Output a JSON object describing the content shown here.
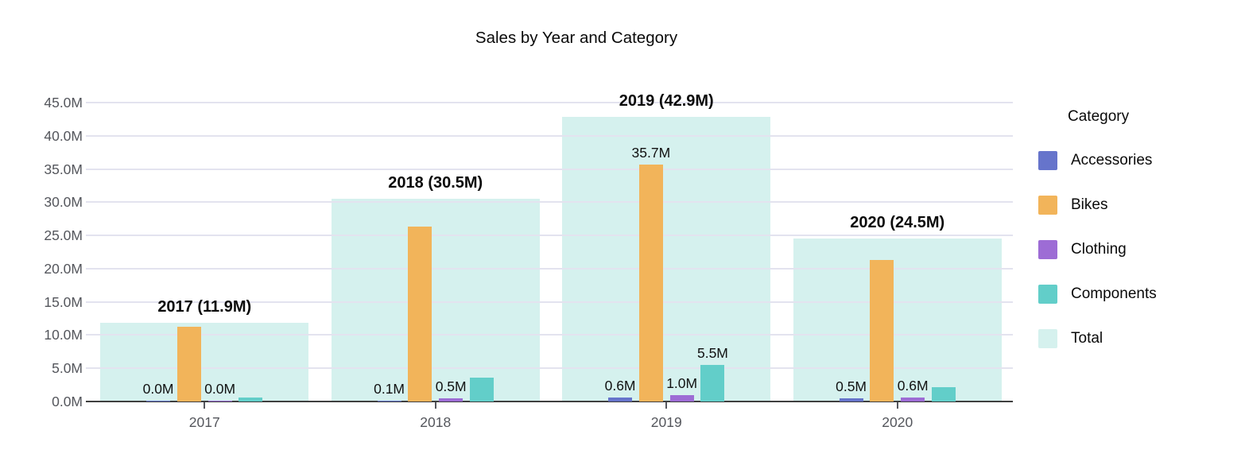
{
  "title": "Sales by Year and Category",
  "legend": {
    "title": "Category",
    "items": [
      {
        "label": "Accessories",
        "color": "#6674CB"
      },
      {
        "label": "Bikes",
        "color": "#F2B45A"
      },
      {
        "label": "Clothing",
        "color": "#9D6CD5"
      },
      {
        "label": "Components",
        "color": "#62CEC9"
      },
      {
        "label": "Total",
        "color": "#D5F1EE"
      }
    ]
  },
  "chart_data": {
    "type": "bar",
    "title": "Sales by Year and Category",
    "categories": [
      "2017",
      "2018",
      "2019",
      "2020"
    ],
    "series": [
      {
        "name": "Accessories",
        "color": "#6674CB",
        "values": [
          0.03,
          0.1,
          0.6,
          0.5
        ],
        "bar_labels": [
          "0.0M",
          "0.1M",
          "0.6M",
          "0.5M"
        ]
      },
      {
        "name": "Bikes",
        "color": "#F2B45A",
        "values": [
          11.2,
          26.3,
          35.7,
          21.3
        ],
        "bar_labels": [
          null,
          null,
          "35.7M",
          null
        ]
      },
      {
        "name": "Clothing",
        "color": "#9D6CD5",
        "values": [
          0.03,
          0.5,
          1.0,
          0.6
        ],
        "bar_labels": [
          "0.0M",
          "0.5M",
          "1.0M",
          "0.6M"
        ]
      },
      {
        "name": "Components",
        "color": "#62CEC9",
        "values": [
          0.6,
          3.6,
          5.5,
          2.1
        ],
        "bar_labels": [
          null,
          null,
          "5.5M",
          null
        ]
      }
    ],
    "totals": {
      "name": "Total",
      "color": "#D5F1EE",
      "values": [
        11.9,
        30.5,
        42.9,
        24.5
      ],
      "labels": [
        "2017 (11.9M)",
        "2018 (30.5M)",
        "2019 (42.9M)",
        "2020 (24.5M)"
      ]
    },
    "yaxis": {
      "tick_values": [
        0,
        5,
        10,
        15,
        20,
        25,
        30,
        35,
        40,
        45
      ],
      "tick_labels": [
        "0.0M",
        "5.0M",
        "10.0M",
        "15.0M",
        "20.0M",
        "25.0M",
        "30.0M",
        "35.0M",
        "40.0M",
        "45.0M"
      ],
      "ylim": [
        0,
        45
      ]
    },
    "xlabel": "",
    "ylabel": "",
    "grid": true,
    "legend_position": "right"
  }
}
